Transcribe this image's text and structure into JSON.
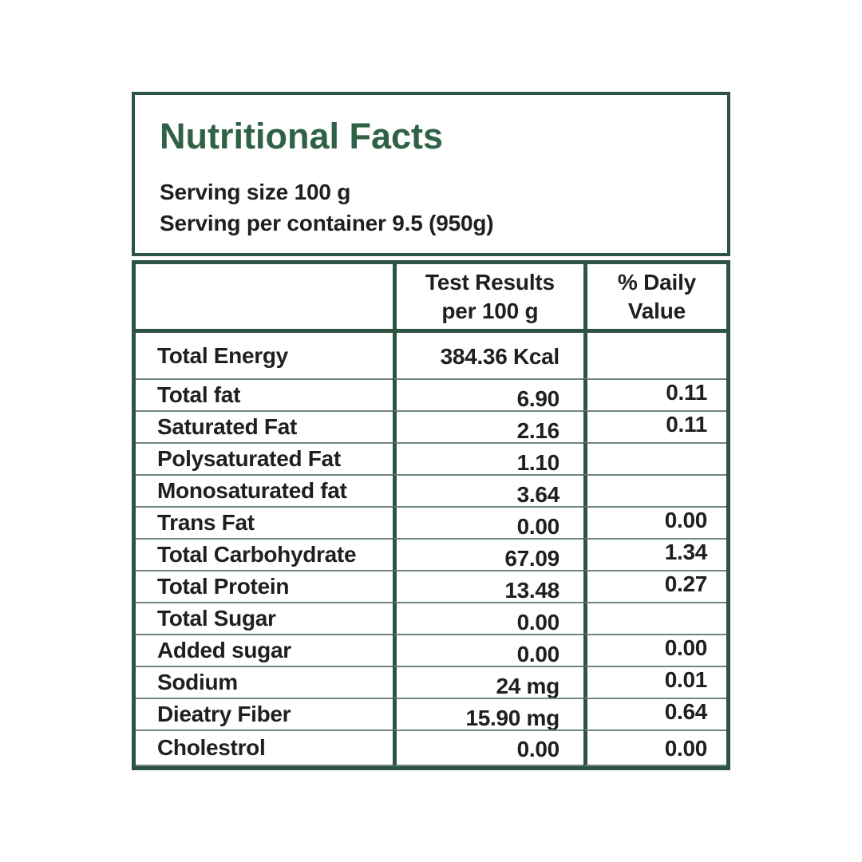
{
  "panel": {
    "title": "Nutritional Facts",
    "serving_size": "Serving size 100 g",
    "serving_per_container": "Serving per container 9.5 (950g)"
  },
  "table": {
    "col1_header": "",
    "col2_header": "Test Results\nper 100 g",
    "col3_header": "% Daily\nValue",
    "rows": [
      {
        "label": "Total Energy",
        "test_result": "384.36 Kcal",
        "daily_value": ""
      },
      {
        "label": "Total fat",
        "test_result": "6.90",
        "daily_value": "0.11"
      },
      {
        "label": "Saturated Fat",
        "test_result": "2.16",
        "daily_value": "0.11"
      },
      {
        "label": "Polysaturated Fat",
        "test_result": "1.10",
        "daily_value": ""
      },
      {
        "label": "Monosaturated fat",
        "test_result": "3.64",
        "daily_value": ""
      },
      {
        "label": "Trans Fat",
        "test_result": "0.00",
        "daily_value": "0.00"
      },
      {
        "label": "Total Carbohydrate",
        "test_result": "67.09",
        "daily_value": "1.34"
      },
      {
        "label": "Total Protein",
        "test_result": "13.48",
        "daily_value": "0.27"
      },
      {
        "label": "Total Sugar",
        "test_result": "0.00",
        "daily_value": ""
      },
      {
        "label": "Added sugar",
        "test_result": "0.00",
        "daily_value": "0.00"
      },
      {
        "label": "Sodium",
        "test_result": "24 mg",
        "daily_value": "0.01"
      },
      {
        "label": "Dieatry Fiber",
        "test_result": "15.90 mg",
        "daily_value": "0.64"
      },
      {
        "label": "Cholestrol",
        "test_result": "0.00",
        "daily_value": "0.00"
      }
    ]
  },
  "colors": {
    "border_green": "#2d5342",
    "title_green": "#2f6146",
    "thin_line_green": "#6d887a",
    "text": "#1e201f",
    "background": "#ffffff"
  }
}
